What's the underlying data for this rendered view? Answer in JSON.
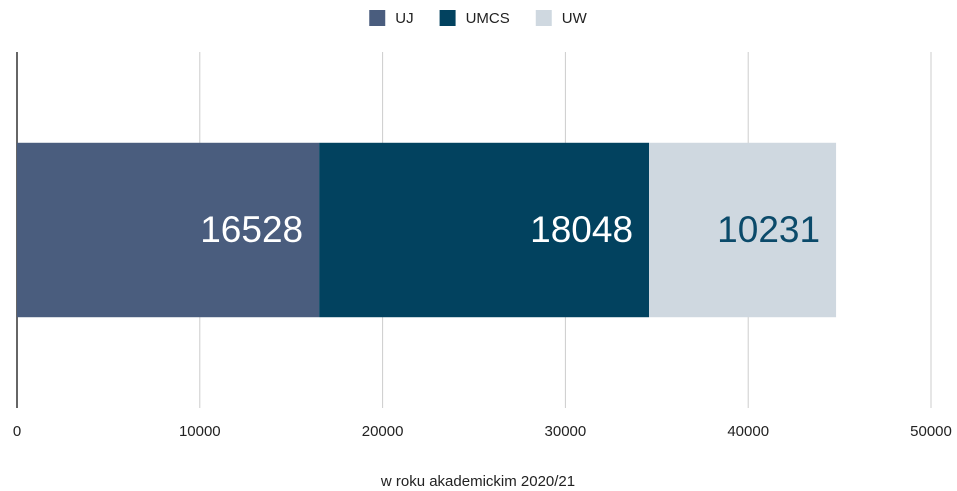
{
  "chart_data": {
    "type": "bar",
    "orientation": "horizontal",
    "stacked": true,
    "categories": [
      null
    ],
    "series": [
      {
        "name": "UJ",
        "color": "#4a5d7e",
        "label_color": "#ffffff",
        "values": [
          16528
        ]
      },
      {
        "name": "UMCS",
        "color": "#02425f",
        "label_color": "#ffffff",
        "values": [
          18048
        ]
      },
      {
        "name": "UW",
        "color": "#cfd8e0",
        "label_color": "#0b4a6a",
        "values": [
          10231
        ]
      }
    ],
    "xlim": [
      0,
      50000
    ],
    "xticks": [
      0,
      10000,
      20000,
      30000,
      40000,
      50000
    ],
    "xlabel": "w roku akademickim 2020/21",
    "grid": true,
    "legend": "top"
  }
}
